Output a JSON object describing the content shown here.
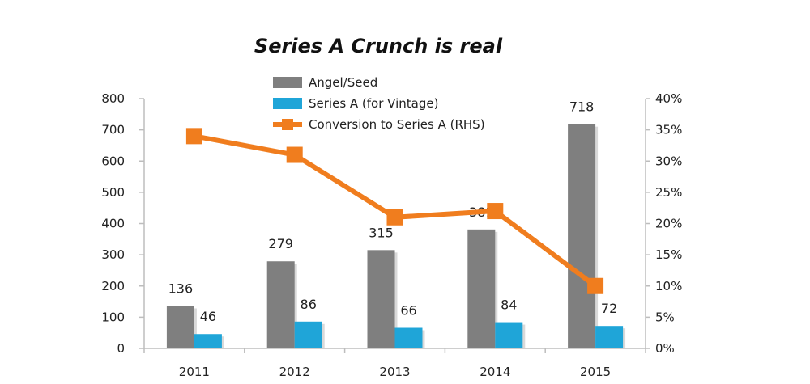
{
  "chart_data": {
    "type": "bar",
    "title": "Series A Crunch is real",
    "categories": [
      "2011",
      "2012",
      "2013",
      "2014",
      "2015"
    ],
    "series": [
      {
        "name": "Angel/Seed",
        "kind": "bar",
        "axis": "left",
        "color": "#7f7f7f",
        "values": [
          136,
          279,
          315,
          381,
          718
        ]
      },
      {
        "name": "Series A (for Vintage)",
        "kind": "bar",
        "axis": "left",
        "color": "#1fa5d8",
        "values": [
          46,
          86,
          66,
          84,
          72
        ]
      },
      {
        "name": "Conversion to Series A (RHS)",
        "kind": "line",
        "axis": "right",
        "color": "#f07d1e",
        "values": [
          0.34,
          0.31,
          0.21,
          0.22,
          0.1
        ]
      }
    ],
    "y_left": {
      "min": 0,
      "max": 800,
      "ticks": [
        "0",
        "100",
        "200",
        "300",
        "400",
        "500",
        "600",
        "700",
        "800"
      ]
    },
    "y_right": {
      "min": 0,
      "max": 0.4,
      "ticks": [
        "0%",
        "5%",
        "10%",
        "15%",
        "20%",
        "25%",
        "30%",
        "35%",
        "40%"
      ]
    },
    "grid": false,
    "legend_position": "top-left"
  }
}
